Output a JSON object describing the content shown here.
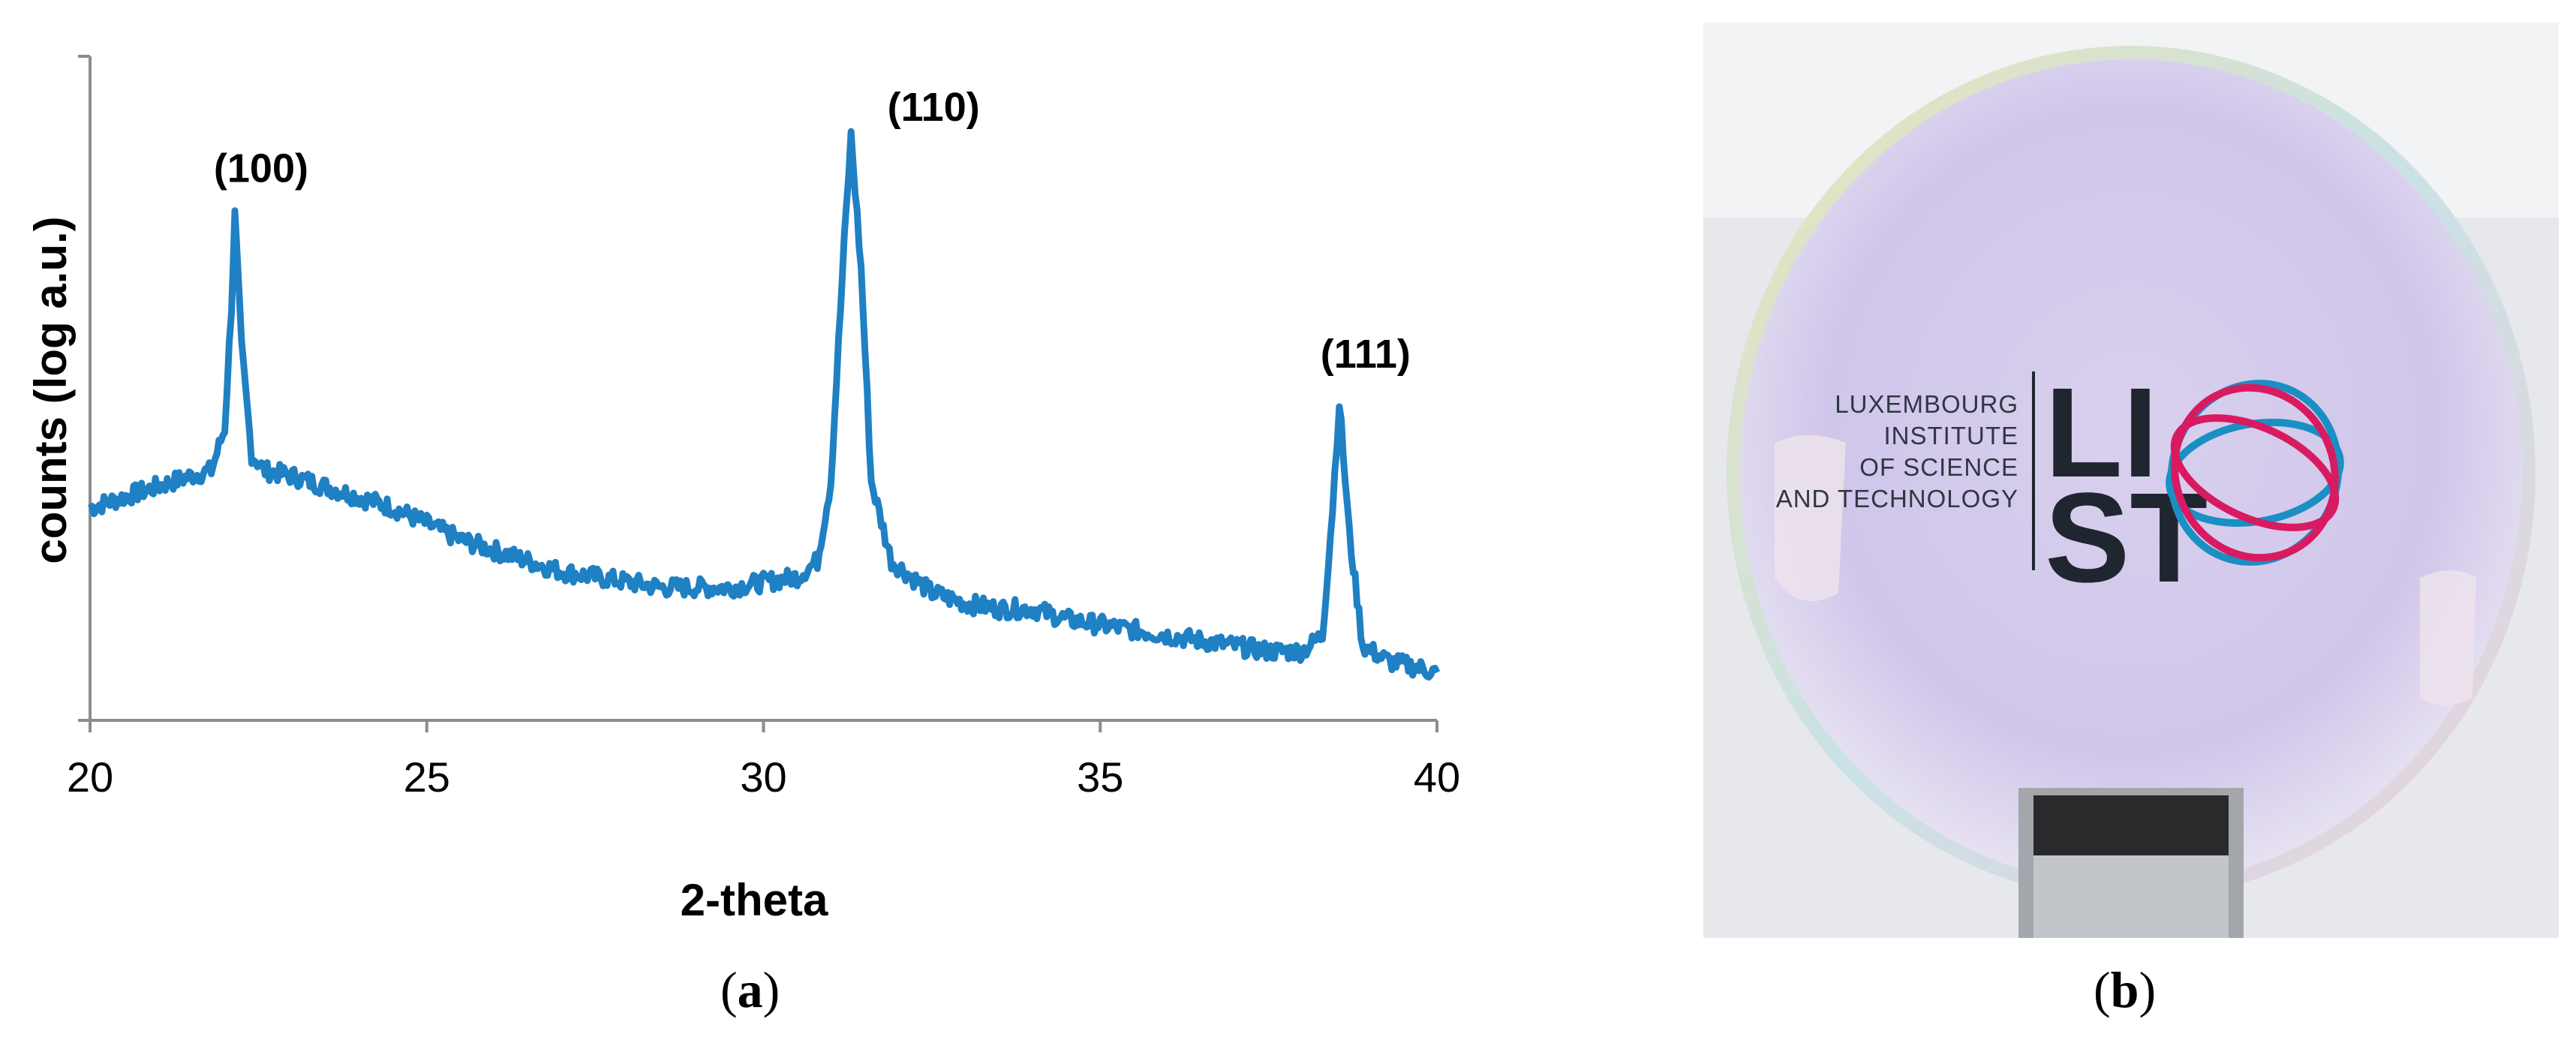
{
  "chart_data": {
    "type": "line",
    "title": "",
    "xlabel": "2-theta",
    "ylabel": "counts (log a.u.)",
    "xlim": [
      20,
      40
    ],
    "x_ticks": [
      "20",
      "25",
      "30",
      "35",
      "40"
    ],
    "y_ticks_labeled": false,
    "grid": false,
    "series": [
      {
        "color": "#1f80c3",
        "points": [
          [
            20.0,
            0.4
          ],
          [
            20.5,
            0.42
          ],
          [
            21.0,
            0.44
          ],
          [
            21.5,
            0.46
          ],
          [
            21.8,
            0.47
          ],
          [
            22.0,
            0.55
          ],
          [
            22.1,
            0.78
          ],
          [
            22.15,
            0.95
          ],
          [
            22.25,
            0.7
          ],
          [
            22.4,
            0.5
          ],
          [
            22.6,
            0.47
          ],
          [
            23.0,
            0.46
          ],
          [
            23.5,
            0.44
          ],
          [
            24.0,
            0.42
          ],
          [
            24.5,
            0.4
          ],
          [
            25.0,
            0.37
          ],
          [
            25.5,
            0.34
          ],
          [
            26.0,
            0.32
          ],
          [
            26.5,
            0.3
          ],
          [
            27.0,
            0.28
          ],
          [
            27.5,
            0.27
          ],
          [
            28.0,
            0.26
          ],
          [
            28.5,
            0.25
          ],
          [
            29.0,
            0.25
          ],
          [
            29.5,
            0.25
          ],
          [
            30.0,
            0.26
          ],
          [
            30.5,
            0.27
          ],
          [
            30.8,
            0.3
          ],
          [
            31.0,
            0.45
          ],
          [
            31.2,
            0.9
          ],
          [
            31.3,
            1.1
          ],
          [
            31.45,
            0.85
          ],
          [
            31.6,
            0.45
          ],
          [
            31.9,
            0.3
          ],
          [
            32.5,
            0.24
          ],
          [
            33.0,
            0.22
          ],
          [
            33.5,
            0.21
          ],
          [
            34.0,
            0.21
          ],
          [
            34.5,
            0.19
          ],
          [
            35.0,
            0.18
          ],
          [
            35.5,
            0.17
          ],
          [
            36.0,
            0.16
          ],
          [
            36.5,
            0.15
          ],
          [
            37.0,
            0.14
          ],
          [
            37.5,
            0.13
          ],
          [
            38.0,
            0.13
          ],
          [
            38.3,
            0.16
          ],
          [
            38.45,
            0.4
          ],
          [
            38.55,
            0.6
          ],
          [
            38.7,
            0.35
          ],
          [
            38.9,
            0.14
          ],
          [
            39.3,
            0.11
          ],
          [
            39.7,
            0.1
          ],
          [
            40.0,
            0.09
          ]
        ]
      }
    ],
    "annotations": [
      {
        "text": "(100)",
        "x": 22.15,
        "y": 0.95
      },
      {
        "text": "(110)",
        "x": 31.3,
        "y": 1.1
      },
      {
        "text": "(111)",
        "x": 38.55,
        "y": 0.6
      }
    ]
  },
  "panels": {
    "a_label": "a",
    "b_label": "b"
  },
  "photo": {
    "logo_lines": [
      "LUXEMBOURG",
      "INSTITUTE",
      "OF SCIENCE",
      "AND TECHNOLOGY"
    ],
    "logo_mark_top": "LI",
    "logo_mark_bottom": "ST"
  }
}
